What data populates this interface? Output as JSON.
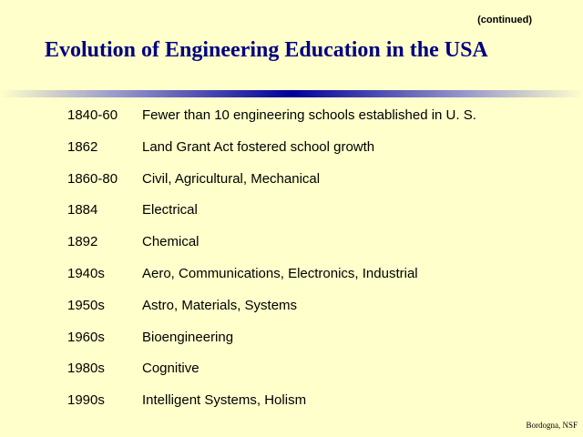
{
  "header": {
    "note": "(continued)",
    "title": "Evolution of Engineering Education in the USA"
  },
  "rows": [
    [
      "1840-60",
      "Fewer than 10 engineering schools established in U. S."
    ],
    [
      "1862",
      "Land Grant Act fostered school growth"
    ],
    [
      "1860-80",
      "Civil, Agricultural, Mechanical"
    ],
    [
      "1884",
      "Electrical"
    ],
    [
      "1892",
      "Chemical"
    ],
    [
      "1940s",
      "Aero, Communications, Electronics, Industrial"
    ],
    [
      "1950s",
      "Astro, Materials, Systems"
    ],
    [
      "1960s",
      "Bioengineering"
    ],
    [
      "1980s",
      "Cognitive"
    ],
    [
      "1990s",
      "Intelligent Systems, Holism"
    ]
  ],
  "footer": "Bordogna, NSF"
}
